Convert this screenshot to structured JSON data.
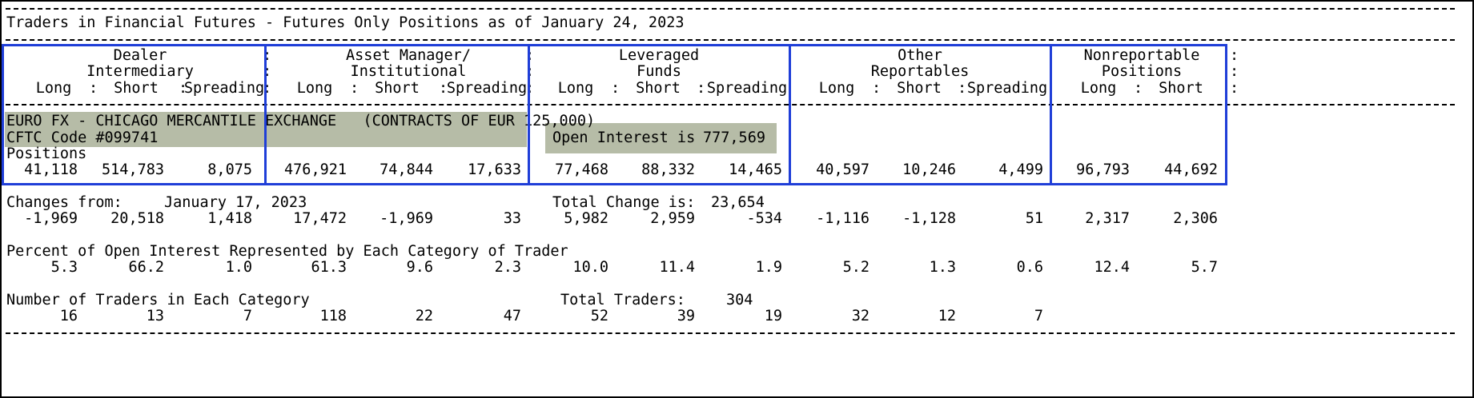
{
  "title": "Traders in Financial Futures - Futures Only Positions as of January 24, 2023",
  "groups": [
    {
      "line1": "Dealer",
      "line2": "Intermediary",
      "cols": [
        "Long",
        "Short",
        "Spreading"
      ]
    },
    {
      "line1": "Asset Manager/",
      "line2": "Institutional",
      "cols": [
        "Long",
        "Short",
        "Spreading"
      ]
    },
    {
      "line1": "Leveraged",
      "line2": "Funds",
      "cols": [
        "Long",
        "Short",
        "Spreading"
      ]
    },
    {
      "line1": "Other",
      "line2": "Reportables",
      "cols": [
        "Long",
        "Short",
        "Spreading"
      ]
    },
    {
      "line1": "Nonreportable",
      "line2": "Positions",
      "cols": [
        "Long",
        "Short"
      ]
    }
  ],
  "market": {
    "name": "EURO FX - CHICAGO MERCANTILE EXCHANGE   (CONTRACTS OF EUR 125,000)",
    "code": "CFTC Code #099741",
    "open_interest_label": "Open Interest is",
    "open_interest": "777,569"
  },
  "positions": {
    "label": "Positions",
    "values": [
      "41,118",
      "514,783",
      "8,075",
      "476,921",
      "74,844",
      "17,633",
      "77,468",
      "88,332",
      "14,465",
      "40,597",
      "10,246",
      "4,499",
      "96,793",
      "44,692"
    ]
  },
  "changes": {
    "label": "Changes from:",
    "date": "January 17, 2023",
    "total_label": "Total Change is:",
    "total": "23,654",
    "values": [
      "-1,969",
      "20,518",
      "1,418",
      "17,472",
      "-1,969",
      "33",
      "5,982",
      "2,959",
      "-534",
      "-1,116",
      "-1,128",
      "51",
      "2,317",
      "2,306"
    ]
  },
  "percent": {
    "label": "Percent of Open Interest Represented by Each Category of Trader",
    "values": [
      "5.3",
      "66.2",
      "1.0",
      "61.3",
      "9.6",
      "2.3",
      "10.0",
      "11.4",
      "1.9",
      "5.2",
      "1.3",
      "0.6",
      "12.4",
      "5.7"
    ]
  },
  "traders": {
    "label": "Number of Traders in Each Category",
    "total_label": "Total Traders:",
    "total": "304",
    "values": [
      "16",
      "13",
      "7",
      "118",
      "22",
      "47",
      "52",
      "39",
      "19",
      "32",
      "12",
      "7",
      "",
      ""
    ]
  },
  "colors": {
    "highlight": "#b6bca7",
    "box_border": "#1f3ed8"
  }
}
